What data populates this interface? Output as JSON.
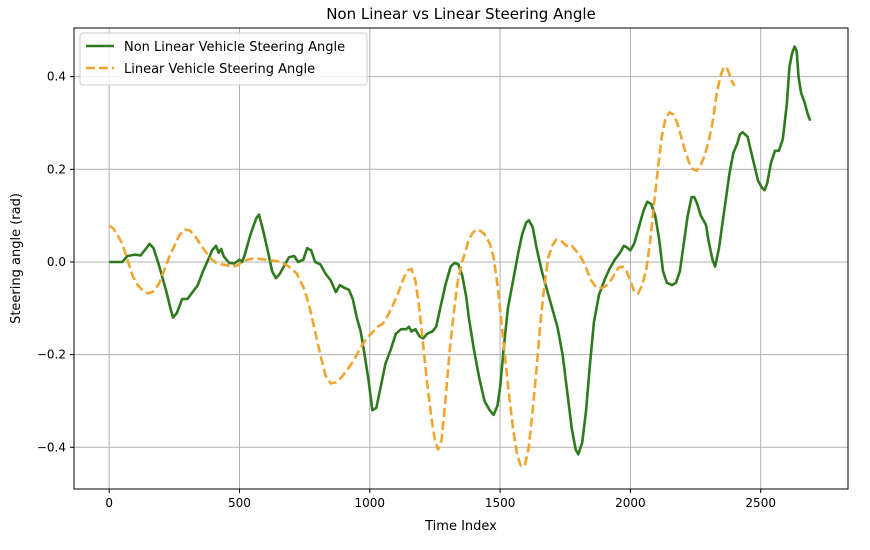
{
  "chart_data": {
    "type": "line",
    "title": "Non Linear vs Linear Steering Angle",
    "xlabel": "Time Index",
    "ylabel": "Steering angle (rad)",
    "xlim": [
      -135,
      2835
    ],
    "ylim": [
      -0.49,
      0.505
    ],
    "xticks": [
      0,
      500,
      1000,
      1500,
      2000,
      2500
    ],
    "yticks": [
      -0.4,
      -0.2,
      0.0,
      0.2,
      0.4
    ],
    "ytick_labels": [
      "−0.4",
      "−0.2",
      "0.0",
      "0.2",
      "0.4"
    ],
    "grid": true,
    "legend_position": "top-left",
    "series": [
      {
        "name": "Non Linear Vehicle Steering Angle",
        "color": "#2f7a1e",
        "style": "solid",
        "points": [
          [
            0,
            0.0
          ],
          [
            50,
            0.0
          ],
          [
            70,
            0.013
          ],
          [
            100,
            0.016
          ],
          [
            120,
            0.014
          ],
          [
            140,
            0.028
          ],
          [
            155,
            0.039
          ],
          [
            170,
            0.03
          ],
          [
            190,
            -0.005
          ],
          [
            205,
            -0.035
          ],
          [
            220,
            -0.065
          ],
          [
            235,
            -0.1
          ],
          [
            245,
            -0.12
          ],
          [
            260,
            -0.11
          ],
          [
            280,
            -0.08
          ],
          [
            300,
            -0.08
          ],
          [
            320,
            -0.065
          ],
          [
            340,
            -0.05
          ],
          [
            360,
            -0.02
          ],
          [
            380,
            0.005
          ],
          [
            395,
            0.025
          ],
          [
            410,
            0.035
          ],
          [
            420,
            0.02
          ],
          [
            430,
            0.028
          ],
          [
            440,
            0.012
          ],
          [
            460,
            -0.002
          ],
          [
            480,
            -0.003
          ],
          [
            500,
            0.005
          ],
          [
            510,
            0.0
          ],
          [
            520,
            0.015
          ],
          [
            540,
            0.055
          ],
          [
            555,
            0.08
          ],
          [
            565,
            0.095
          ],
          [
            575,
            0.102
          ],
          [
            590,
            0.07
          ],
          [
            610,
            0.02
          ],
          [
            625,
            -0.02
          ],
          [
            640,
            -0.035
          ],
          [
            655,
            -0.025
          ],
          [
            670,
            -0.01
          ],
          [
            690,
            0.01
          ],
          [
            710,
            0.013
          ],
          [
            725,
            0.0
          ],
          [
            745,
            0.005
          ],
          [
            760,
            0.03
          ],
          [
            775,
            0.025
          ],
          [
            790,
            0.0
          ],
          [
            810,
            -0.005
          ],
          [
            830,
            -0.025
          ],
          [
            850,
            -0.04
          ],
          [
            870,
            -0.065
          ],
          [
            885,
            -0.05
          ],
          [
            900,
            -0.055
          ],
          [
            920,
            -0.06
          ],
          [
            935,
            -0.08
          ],
          [
            950,
            -0.12
          ],
          [
            965,
            -0.15
          ],
          [
            980,
            -0.2
          ],
          [
            995,
            -0.255
          ],
          [
            1010,
            -0.32
          ],
          [
            1025,
            -0.315
          ],
          [
            1040,
            -0.275
          ],
          [
            1060,
            -0.22
          ],
          [
            1080,
            -0.19
          ],
          [
            1100,
            -0.155
          ],
          [
            1120,
            -0.145
          ],
          [
            1140,
            -0.145
          ],
          [
            1150,
            -0.14
          ],
          [
            1160,
            -0.15
          ],
          [
            1175,
            -0.145
          ],
          [
            1190,
            -0.16
          ],
          [
            1205,
            -0.165
          ],
          [
            1220,
            -0.155
          ],
          [
            1240,
            -0.15
          ],
          [
            1255,
            -0.14
          ],
          [
            1270,
            -0.1
          ],
          [
            1290,
            -0.05
          ],
          [
            1310,
            -0.01
          ],
          [
            1325,
            -0.002
          ],
          [
            1340,
            -0.005
          ],
          [
            1355,
            -0.03
          ],
          [
            1370,
            -0.075
          ],
          [
            1380,
            -0.12
          ],
          [
            1400,
            -0.19
          ],
          [
            1420,
            -0.25
          ],
          [
            1440,
            -0.3
          ],
          [
            1460,
            -0.32
          ],
          [
            1475,
            -0.33
          ],
          [
            1490,
            -0.31
          ],
          [
            1500,
            -0.27
          ],
          [
            1515,
            -0.18
          ],
          [
            1530,
            -0.1
          ],
          [
            1550,
            -0.04
          ],
          [
            1570,
            0.02
          ],
          [
            1585,
            0.06
          ],
          [
            1600,
            0.085
          ],
          [
            1610,
            0.09
          ],
          [
            1625,
            0.075
          ],
          [
            1640,
            0.03
          ],
          [
            1660,
            -0.02
          ],
          [
            1680,
            -0.06
          ],
          [
            1700,
            -0.1
          ],
          [
            1720,
            -0.14
          ],
          [
            1740,
            -0.2
          ],
          [
            1760,
            -0.29
          ],
          [
            1775,
            -0.36
          ],
          [
            1790,
            -0.405
          ],
          [
            1800,
            -0.415
          ],
          [
            1815,
            -0.39
          ],
          [
            1830,
            -0.32
          ],
          [
            1845,
            -0.22
          ],
          [
            1860,
            -0.13
          ],
          [
            1880,
            -0.07
          ],
          [
            1900,
            -0.04
          ],
          [
            1920,
            -0.015
          ],
          [
            1940,
            0.005
          ],
          [
            1960,
            0.02
          ],
          [
            1975,
            0.035
          ],
          [
            1985,
            0.032
          ],
          [
            2000,
            0.025
          ],
          [
            2015,
            0.04
          ],
          [
            2030,
            0.07
          ],
          [
            2050,
            0.11
          ],
          [
            2065,
            0.13
          ],
          [
            2080,
            0.125
          ],
          [
            2095,
            0.1
          ],
          [
            2110,
            0.05
          ],
          [
            2125,
            -0.02
          ],
          [
            2140,
            -0.045
          ],
          [
            2160,
            -0.05
          ],
          [
            2175,
            -0.045
          ],
          [
            2190,
            -0.02
          ],
          [
            2205,
            0.04
          ],
          [
            2220,
            0.1
          ],
          [
            2235,
            0.14
          ],
          [
            2245,
            0.14
          ],
          [
            2255,
            0.128
          ],
          [
            2270,
            0.1
          ],
          [
            2290,
            0.08
          ],
          [
            2300,
            0.045
          ],
          [
            2315,
            0.005
          ],
          [
            2325,
            -0.01
          ],
          [
            2340,
            0.03
          ],
          [
            2360,
            0.11
          ],
          [
            2380,
            0.19
          ],
          [
            2395,
            0.235
          ],
          [
            2410,
            0.255
          ],
          [
            2420,
            0.275
          ],
          [
            2430,
            0.28
          ],
          [
            2440,
            0.275
          ],
          [
            2450,
            0.27
          ],
          [
            2460,
            0.245
          ],
          [
            2475,
            0.21
          ],
          [
            2490,
            0.175
          ],
          [
            2505,
            0.16
          ],
          [
            2515,
            0.155
          ],
          [
            2525,
            0.17
          ],
          [
            2540,
            0.215
          ],
          [
            2555,
            0.24
          ],
          [
            2570,
            0.24
          ],
          [
            2585,
            0.265
          ],
          [
            2600,
            0.34
          ],
          [
            2610,
            0.42
          ],
          [
            2620,
            0.45
          ],
          [
            2630,
            0.465
          ],
          [
            2638,
            0.455
          ],
          [
            2645,
            0.4
          ],
          [
            2655,
            0.365
          ],
          [
            2668,
            0.345
          ],
          [
            2680,
            0.32
          ],
          [
            2690,
            0.305
          ]
        ]
      },
      {
        "name": "Linear Vehicle Steering Angle",
        "color": "#f0a530",
        "style": "dashed",
        "points": [
          [
            0,
            0.078
          ],
          [
            15,
            0.073
          ],
          [
            30,
            0.06
          ],
          [
            50,
            0.04
          ],
          [
            70,
            0.005
          ],
          [
            90,
            -0.03
          ],
          [
            110,
            -0.05
          ],
          [
            130,
            -0.063
          ],
          [
            150,
            -0.068
          ],
          [
            170,
            -0.063
          ],
          [
            190,
            -0.048
          ],
          [
            210,
            -0.02
          ],
          [
            230,
            0.01
          ],
          [
            250,
            0.035
          ],
          [
            270,
            0.058
          ],
          [
            290,
            0.07
          ],
          [
            310,
            0.068
          ],
          [
            330,
            0.055
          ],
          [
            350,
            0.038
          ],
          [
            370,
            0.022
          ],
          [
            390,
            0.008
          ],
          [
            410,
            -0.002
          ],
          [
            430,
            -0.005
          ],
          [
            450,
            -0.007
          ],
          [
            470,
            -0.01
          ],
          [
            490,
            -0.008
          ],
          [
            510,
            0.0
          ],
          [
            530,
            0.005
          ],
          [
            550,
            0.007
          ],
          [
            570,
            0.007
          ],
          [
            600,
            0.005
          ],
          [
            630,
            0.003
          ],
          [
            660,
            0.0
          ],
          [
            690,
            -0.01
          ],
          [
            720,
            -0.025
          ],
          [
            750,
            -0.06
          ],
          [
            770,
            -0.1
          ],
          [
            790,
            -0.15
          ],
          [
            810,
            -0.2
          ],
          [
            830,
            -0.245
          ],
          [
            850,
            -0.262
          ],
          [
            870,
            -0.26
          ],
          [
            890,
            -0.25
          ],
          [
            910,
            -0.235
          ],
          [
            930,
            -0.22
          ],
          [
            950,
            -0.2
          ],
          [
            970,
            -0.18
          ],
          [
            990,
            -0.163
          ],
          [
            1010,
            -0.152
          ],
          [
            1030,
            -0.14
          ],
          [
            1050,
            -0.133
          ],
          [
            1070,
            -0.115
          ],
          [
            1090,
            -0.092
          ],
          [
            1110,
            -0.065
          ],
          [
            1130,
            -0.035
          ],
          [
            1145,
            -0.018
          ],
          [
            1160,
            -0.015
          ],
          [
            1175,
            -0.04
          ],
          [
            1190,
            -0.1
          ],
          [
            1205,
            -0.18
          ],
          [
            1220,
            -0.26
          ],
          [
            1235,
            -0.33
          ],
          [
            1250,
            -0.385
          ],
          [
            1262,
            -0.405
          ],
          [
            1275,
            -0.385
          ],
          [
            1290,
            -0.3
          ],
          [
            1305,
            -0.2
          ],
          [
            1320,
            -0.12
          ],
          [
            1335,
            -0.05
          ],
          [
            1350,
            -0.01
          ],
          [
            1365,
            0.02
          ],
          [
            1380,
            0.048
          ],
          [
            1395,
            0.063
          ],
          [
            1410,
            0.07
          ],
          [
            1425,
            0.067
          ],
          [
            1440,
            0.06
          ],
          [
            1460,
            0.04
          ],
          [
            1475,
            0.01
          ],
          [
            1490,
            -0.05
          ],
          [
            1505,
            -0.13
          ],
          [
            1520,
            -0.21
          ],
          [
            1535,
            -0.29
          ],
          [
            1550,
            -0.36
          ],
          [
            1565,
            -0.415
          ],
          [
            1580,
            -0.44
          ],
          [
            1595,
            -0.44
          ],
          [
            1610,
            -0.4
          ],
          [
            1625,
            -0.32
          ],
          [
            1640,
            -0.23
          ],
          [
            1655,
            -0.13
          ],
          [
            1670,
            -0.05
          ],
          [
            1685,
            0.01
          ],
          [
            1700,
            0.035
          ],
          [
            1715,
            0.048
          ],
          [
            1730,
            0.048
          ],
          [
            1745,
            0.04
          ],
          [
            1760,
            0.033
          ],
          [
            1775,
            0.035
          ],
          [
            1790,
            0.025
          ],
          [
            1805,
            0.015
          ],
          [
            1820,
            0.0
          ],
          [
            1835,
            -0.02
          ],
          [
            1850,
            -0.04
          ],
          [
            1865,
            -0.052
          ],
          [
            1880,
            -0.057
          ],
          [
            1895,
            -0.055
          ],
          [
            1910,
            -0.05
          ],
          [
            1925,
            -0.04
          ],
          [
            1940,
            -0.025
          ],
          [
            1955,
            -0.012
          ],
          [
            1970,
            -0.01
          ],
          [
            1985,
            -0.02
          ],
          [
            2000,
            -0.04
          ],
          [
            2015,
            -0.065
          ],
          [
            2030,
            -0.068
          ],
          [
            2045,
            -0.05
          ],
          [
            2060,
            -0.02
          ],
          [
            2075,
            0.04
          ],
          [
            2090,
            0.12
          ],
          [
            2105,
            0.2
          ],
          [
            2120,
            0.27
          ],
          [
            2135,
            0.31
          ],
          [
            2150,
            0.323
          ],
          [
            2165,
            0.318
          ],
          [
            2180,
            0.3
          ],
          [
            2195,
            0.27
          ],
          [
            2210,
            0.24
          ],
          [
            2225,
            0.215
          ],
          [
            2240,
            0.2
          ],
          [
            2255,
            0.197
          ],
          [
            2270,
            0.21
          ],
          [
            2285,
            0.23
          ],
          [
            2300,
            0.26
          ],
          [
            2315,
            0.3
          ],
          [
            2330,
            0.36
          ],
          [
            2345,
            0.4
          ],
          [
            2358,
            0.42
          ],
          [
            2370,
            0.42
          ],
          [
            2380,
            0.405
          ],
          [
            2390,
            0.39
          ],
          [
            2400,
            0.38
          ]
        ]
      }
    ]
  }
}
